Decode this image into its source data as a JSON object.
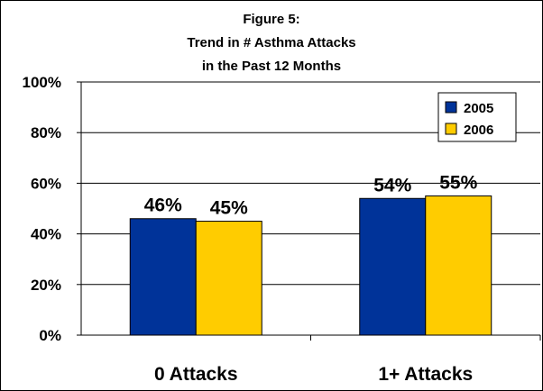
{
  "chart_data": {
    "type": "bar",
    "title_lines": [
      "Figure 5:",
      "Trend in # Asthma Attacks",
      "in the Past 12 Months"
    ],
    "categories": [
      "0 Attacks",
      "1+ Attacks"
    ],
    "series": [
      {
        "name": "2005",
        "values": [
          46,
          54
        ],
        "labels": [
          "46%",
          "54%"
        ],
        "color": "#003399"
      },
      {
        "name": "2006",
        "values": [
          45,
          55
        ],
        "labels": [
          "45%",
          "55%"
        ],
        "color": "#FFCC00"
      }
    ],
    "y_ticks": [
      "0%",
      "20%",
      "40%",
      "60%",
      "80%",
      "100%"
    ],
    "ylim": [
      0,
      100
    ],
    "grid": true,
    "legend_position": "top-right"
  }
}
